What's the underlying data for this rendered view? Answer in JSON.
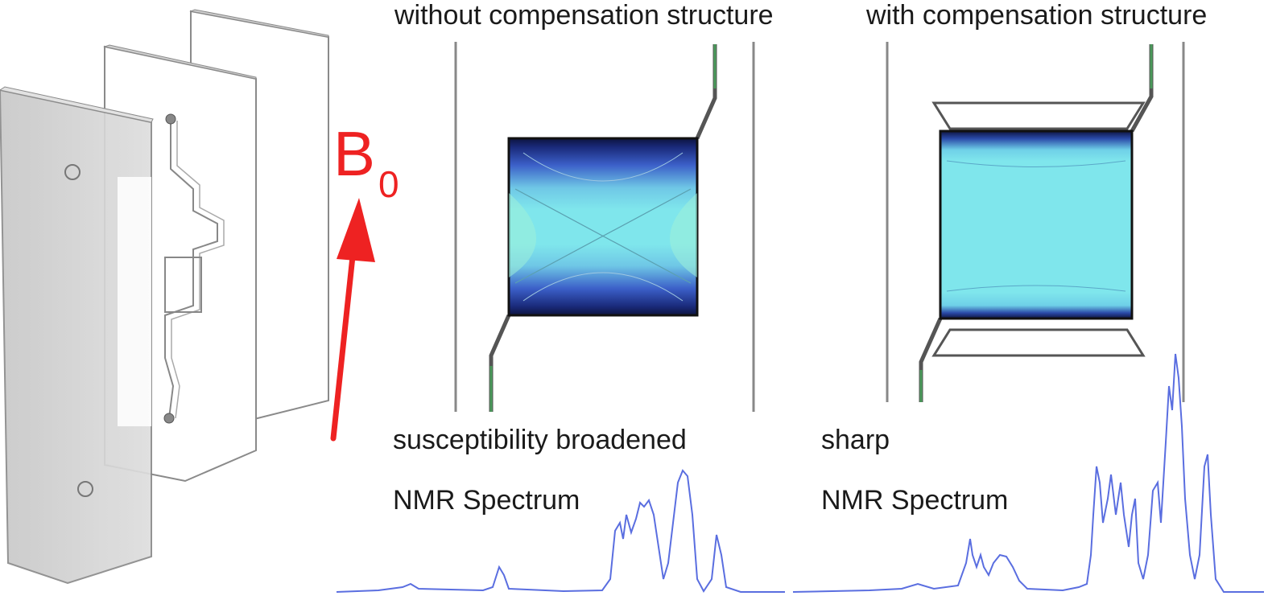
{
  "panels": {
    "left": {
      "title": "without compensation structure",
      "result": "susceptibility broadened",
      "spectrum_label": "NMR Spectrum"
    },
    "right": {
      "title": "with compensation structure",
      "result": "sharp",
      "spectrum_label": "NMR Spectrum"
    }
  },
  "field": {
    "symbol": "B",
    "subscript": "0",
    "color": "#ee2222"
  },
  "colors": {
    "spectrum": "#5a6ee0",
    "field_uniform": "#7fe6ec",
    "field_distorted": "#1a2a7a",
    "plate_glass": "#cfcfcf"
  }
}
